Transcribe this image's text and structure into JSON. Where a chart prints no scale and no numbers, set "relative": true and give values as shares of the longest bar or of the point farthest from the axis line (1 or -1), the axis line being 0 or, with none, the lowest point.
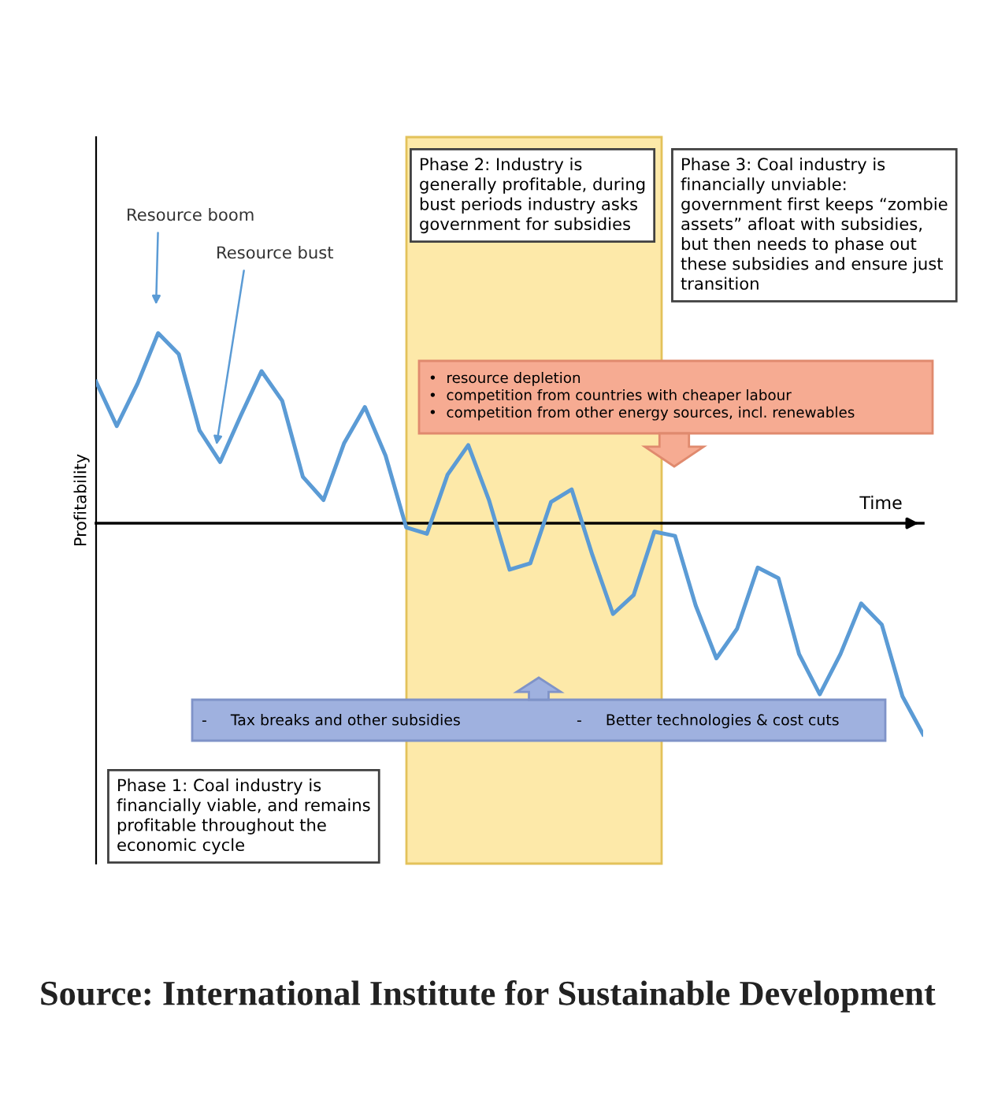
{
  "chart_data": {
    "type": "line",
    "relative": true,
    "xlabel": "Time",
    "ylabel": "Profitability",
    "categories": [
      null,
      null,
      null,
      null,
      null,
      null,
      null,
      null,
      null,
      null,
      null,
      null,
      null,
      null,
      null,
      null,
      null,
      null,
      null,
      null,
      null,
      null,
      null,
      null,
      null,
      null,
      null,
      null,
      null,
      null,
      null,
      null,
      null,
      null,
      null,
      null,
      null,
      null,
      null,
      null,
      null
    ],
    "series": [
      {
        "color": "#5b9bd5",
        "values": [
          0.67,
          0.46,
          0.66,
          0.9,
          0.8,
          0.44,
          0.29,
          0.51,
          0.72,
          0.58,
          0.22,
          0.11,
          0.38,
          0.55,
          0.32,
          -0.02,
          -0.05,
          0.23,
          0.37,
          0.11,
          -0.22,
          -0.19,
          0.1,
          0.16,
          -0.15,
          -0.43,
          -0.34,
          -0.04,
          -0.06,
          -0.39,
          -0.64,
          -0.5,
          -0.21,
          -0.26,
          -0.62,
          -0.81,
          -0.62,
          -0.38,
          -0.48,
          -0.82,
          -1
        ]
      }
    ],
    "annotations": [
      "Resource boom",
      "Resource bust",
      "Phase 2: Industry is\ngenerally profitable, during\nbust periods industry asks\ngovernment for subsidies",
      "Phase 3: Coal industry is\nfinancially unviable:\ngovernment first keeps “zombie\nassets” afloat with subsidies,\nbut then needs to phase out\nthese subsidies and ensure just\ntransition",
      "•  resource depletion\n•  competition from countries with cheaper labour\n•  competition from other energy sources, incl. renewables",
      "-     Tax breaks and other subsidies",
      "-     Better technologies & cost cuts",
      "Phase 1: Coal industry is\nfinancially viable, and remains\nprofitable throughout the\neconomic cycle",
      "Source: International Institute for Sustainable Development"
    ],
    "grid": false,
    "marker": "none",
    "line_style": "solid"
  }
}
